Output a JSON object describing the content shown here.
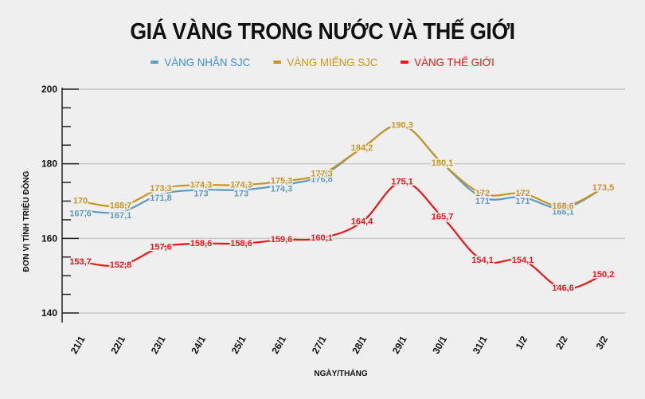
{
  "title": "GIÁ VÀNG TRONG NƯỚC VÀ THẾ GIỚI",
  "legend": [
    {
      "label": "VÀNG NHẪN SJC",
      "color": "#5b9bc0"
    },
    {
      "label": "VÀNG MIẾNG SJC",
      "color": "#c8961e"
    },
    {
      "label": "VÀNG THẾ GIỚI",
      "color": "#f01414"
    }
  ],
  "chart_data": {
    "type": "line",
    "title": "GIÁ VÀNG TRONG NƯỚC VÀ THẾ GIỚI",
    "xlabel": "NGÀY/THÁNG",
    "ylabel": "ĐƠN VỊ TÍNH TRIỆU ĐỒNG",
    "ylim": [
      140,
      200
    ],
    "yticks": [
      140,
      160,
      180,
      200
    ],
    "grid": true,
    "legend_position": "top",
    "categories": [
      "21/1",
      "22/1",
      "23/1",
      "24/1",
      "25/1",
      "26/1",
      "27/1",
      "28/1",
      "29/1",
      "30/1",
      "31/1",
      "1/2",
      "2/2",
      "3/2"
    ],
    "series": [
      {
        "name": "VÀNG NHẪN SJC",
        "color": "#5b9bc0",
        "values": [
          167.6,
          167.1,
          171.8,
          173,
          173,
          174.3,
          176.8,
          184.2,
          190.3,
          180.1,
          171,
          171,
          168.1,
          173.5
        ],
        "labels": [
          "167,6",
          "167,1",
          "171,8",
          "173",
          "173",
          "174,3",
          "176,8",
          "",
          "",
          "",
          "171",
          "171",
          "168,1",
          ""
        ]
      },
      {
        "name": "VÀNG MIẾNG SJC",
        "color": "#c8961e",
        "values": [
          170,
          168.7,
          173.3,
          174.3,
          174.3,
          175.3,
          177.3,
          184.2,
          190.3,
          180.1,
          172,
          172,
          168.6,
          173.5
        ],
        "labels": [
          "170",
          "168,7",
          "173,3",
          "174,3",
          "174,3",
          "175,3",
          "177,3",
          "184,2",
          "190,3",
          "180,1",
          "172",
          "172",
          "168,6",
          "173,5"
        ]
      },
      {
        "name": "VÀNG THẾ GIỚI",
        "color": "#f01414",
        "values": [
          153.7,
          152.8,
          157.6,
          158.6,
          158.6,
          159.6,
          160.1,
          164.4,
          175.1,
          165.7,
          154.1,
          154.1,
          146.6,
          150.2
        ],
        "labels": [
          "153,7",
          "152,8",
          "157,6",
          "158,6",
          "158,6",
          "159,6",
          "160,1",
          "164,4",
          "175,1",
          "165,7",
          "154,1",
          "154,1",
          "146,6",
          "150,2"
        ]
      }
    ]
  }
}
